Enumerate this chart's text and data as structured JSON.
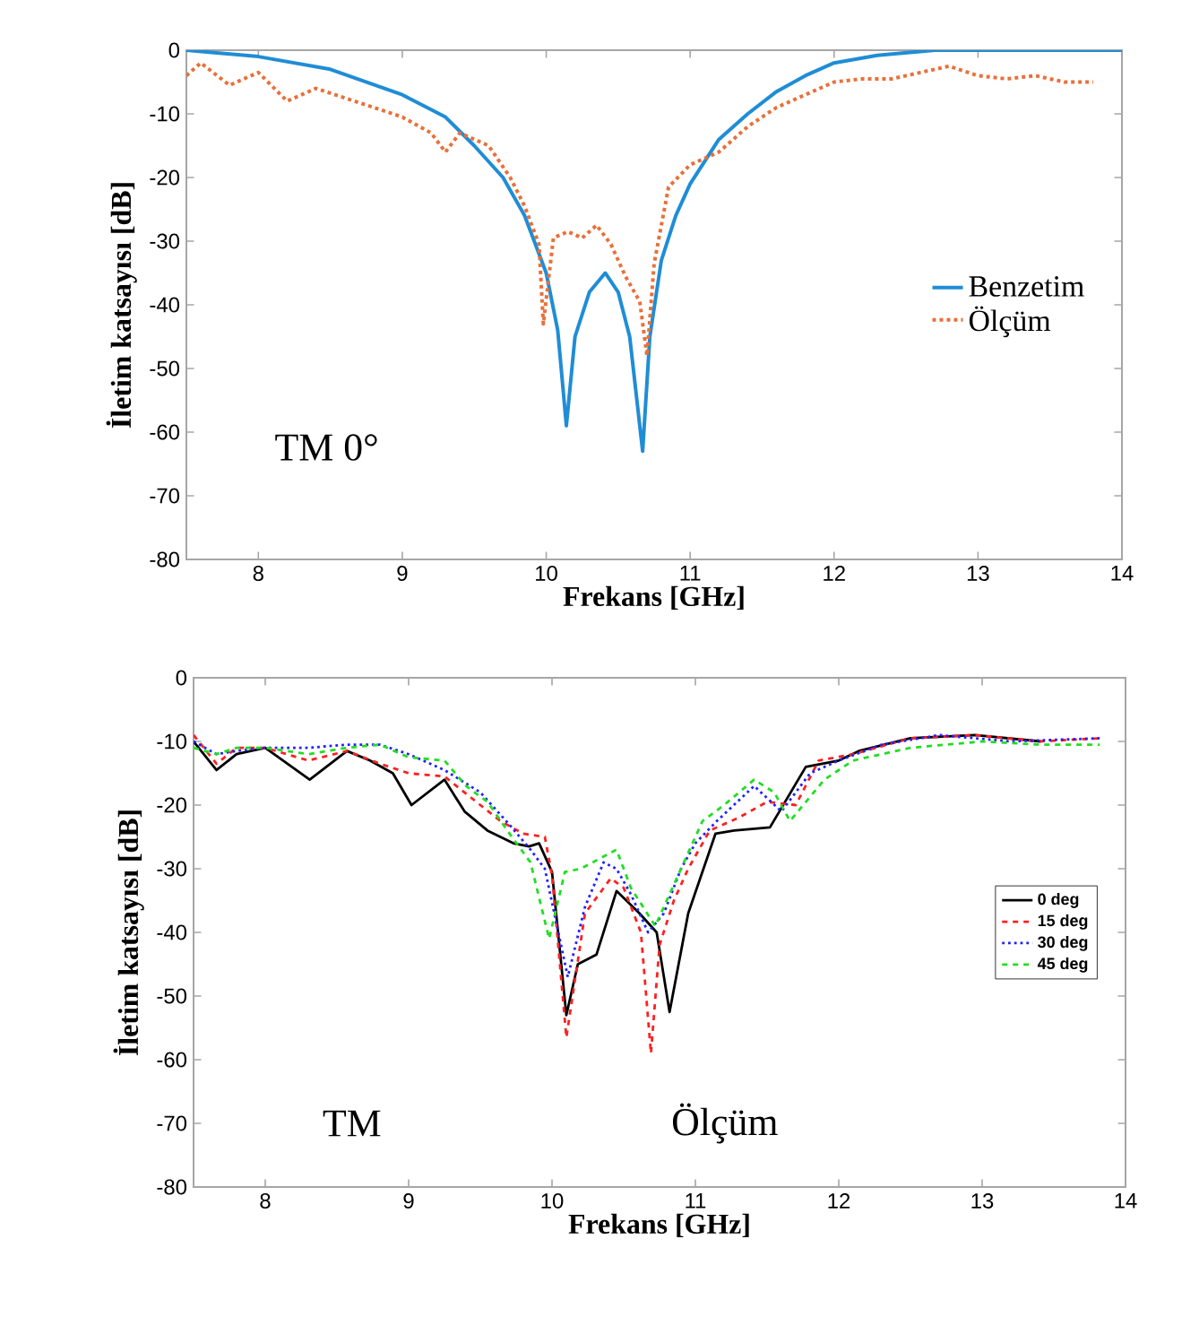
{
  "chart_data": [
    {
      "type": "line",
      "xlabel": "Frekans [GHz]",
      "ylabel": "İletim katsayısı [dB]",
      "xlim": [
        7.5,
        14
      ],
      "ylim": [
        -80,
        0
      ],
      "xticks": [
        8,
        9,
        10,
        11,
        12,
        13,
        14
      ],
      "yticks": [
        -80,
        -70,
        -60,
        -50,
        -40,
        -30,
        -20,
        -10,
        0
      ],
      "legend": "right",
      "annotations": [
        "TM 0°"
      ],
      "series": [
        {
          "name": "Benzetim",
          "color": "#1f8dd6",
          "line_style": "solid",
          "x": [
            7.5,
            8,
            8.5,
            9,
            9.3,
            9.5,
            9.7,
            9.85,
            10.0,
            10.08,
            10.14,
            10.2,
            10.3,
            10.41,
            10.5,
            10.58,
            10.67,
            10.72,
            10.8,
            10.9,
            11.0,
            11.2,
            11.4,
            11.6,
            11.8,
            12.0,
            12.3,
            12.7,
            14
          ],
          "values": [
            0,
            -1,
            -3,
            -7,
            -10.5,
            -15,
            -20,
            -26,
            -35,
            -44,
            -59,
            -45,
            -38,
            -35,
            -38,
            -45,
            -63,
            -45,
            -33,
            -26,
            -21,
            -14,
            -10,
            -6.5,
            -4,
            -2,
            -0.8,
            0,
            0
          ]
        },
        {
          "name": "Ölçüm",
          "color": "#e8703a",
          "line_style": "dotted",
          "x": [
            7.5,
            7.6,
            7.8,
            8.0,
            8.2,
            8.4,
            8.6,
            8.8,
            9.0,
            9.2,
            9.3,
            9.4,
            9.6,
            9.75,
            9.85,
            9.95,
            9.98,
            10.05,
            10.15,
            10.25,
            10.35,
            10.45,
            10.55,
            10.65,
            10.7,
            10.75,
            10.85,
            11.0,
            11.2,
            11.4,
            11.6,
            11.8,
            12.0,
            12.2,
            12.4,
            12.6,
            12.8,
            13.0,
            13.2,
            13.4,
            13.6,
            13.8
          ],
          "values": [
            -4,
            -2,
            -5.5,
            -3.5,
            -8,
            -6,
            -7.5,
            -9,
            -10.5,
            -13,
            -16,
            -13,
            -15,
            -20,
            -24.5,
            -30.5,
            -43,
            -29.5,
            -28.5,
            -29.5,
            -27.5,
            -30.5,
            -35.5,
            -39.5,
            -48,
            -33.5,
            -21.5,
            -18,
            -16,
            -12,
            -9,
            -7,
            -5,
            -4.5,
            -4.5,
            -3.5,
            -2.5,
            -4,
            -4.5,
            -4,
            -5,
            -5
          ]
        }
      ]
    },
    {
      "type": "line",
      "xlabel": "Frekans [GHz]",
      "ylabel": "İletim katsayısı [dB]",
      "xlim": [
        7.5,
        14
      ],
      "ylim": [
        -80,
        0
      ],
      "xticks": [
        8,
        9,
        10,
        11,
        12,
        13,
        14
      ],
      "yticks": [
        -80,
        -70,
        -60,
        -50,
        -40,
        -30,
        -20,
        -10,
        0
      ],
      "legend": "right",
      "annotations": [
        "TM",
        "Ölçüm"
      ],
      "series": [
        {
          "name": "0 deg",
          "color": "#000000",
          "line_style": "solid",
          "x": [
            7.5,
            7.66,
            7.8,
            8.0,
            8.31,
            8.57,
            8.73,
            8.89,
            9.02,
            9.25,
            9.39,
            9.55,
            9.73,
            9.84,
            9.91,
            10.0,
            10.1,
            10.18,
            10.31,
            10.45,
            10.61,
            10.73,
            10.82,
            10.95,
            11.14,
            11.27,
            11.52,
            11.77,
            12.0,
            12.14,
            12.5,
            12.95,
            13.41
          ],
          "values": [
            -10,
            -14.5,
            -12,
            -11,
            -16,
            -11.5,
            -13,
            -15,
            -20,
            -16,
            -21,
            -24,
            -26,
            -26.5,
            -26,
            -30.5,
            -53,
            -45,
            -43.5,
            -33.5,
            -37,
            -40,
            -52.5,
            -37,
            -24.5,
            -24,
            -23.5,
            -14,
            -13,
            -11.5,
            -9.5,
            -9,
            -10
          ]
        },
        {
          "name": "15 deg",
          "color": "#ff2020",
          "line_style": "dashed",
          "x": [
            7.5,
            7.66,
            7.8,
            8.0,
            8.3,
            8.57,
            8.8,
            9.0,
            9.25,
            9.64,
            9.8,
            9.95,
            10.0,
            10.1,
            10.23,
            10.41,
            10.5,
            10.62,
            10.69,
            10.75,
            10.85,
            10.95,
            11.1,
            11.3,
            11.5,
            11.7,
            11.86,
            12.1,
            12.5,
            12.95,
            13.4,
            13.82
          ],
          "values": [
            -9,
            -13.5,
            -11,
            -11,
            -13,
            -11.5,
            -13.5,
            -15,
            -15.5,
            -22.5,
            -24.5,
            -25,
            -31,
            -56.5,
            -37,
            -31.5,
            -33,
            -40,
            -59,
            -42,
            -35,
            -30,
            -24,
            -22,
            -19.5,
            -20,
            -13,
            -12,
            -9.5,
            -9,
            -10,
            -9.5
          ]
        },
        {
          "name": "30 deg",
          "color": "#2020ff",
          "line_style": "dotted",
          "x": [
            7.5,
            7.66,
            7.8,
            8.0,
            8.3,
            8.57,
            8.8,
            9.0,
            9.25,
            9.5,
            9.7,
            9.85,
            9.95,
            10.11,
            10.23,
            10.36,
            10.45,
            10.55,
            10.67,
            10.78,
            10.9,
            11.0,
            11.15,
            11.41,
            11.6,
            11.8,
            12.0,
            12.3,
            12.7,
            13.2,
            13.82
          ],
          "values": [
            -10,
            -12,
            -11.5,
            -11,
            -11,
            -10.5,
            -10.5,
            -12,
            -14.5,
            -18,
            -23,
            -27,
            -30,
            -47,
            -36,
            -29,
            -30,
            -34,
            -40,
            -37,
            -30,
            -26,
            -22.5,
            -17,
            -21,
            -15,
            -13,
            -10.5,
            -9,
            -10,
            -9.5
          ]
        },
        {
          "name": "45 deg",
          "color": "#22dd22",
          "line_style": "dashed",
          "x": [
            7.5,
            7.66,
            7.8,
            8.0,
            8.3,
            8.57,
            8.8,
            9.0,
            9.25,
            9.4,
            9.55,
            9.72,
            9.85,
            9.98,
            10.09,
            10.2,
            10.45,
            10.55,
            10.72,
            10.8,
            11.05,
            11.2,
            11.41,
            11.55,
            11.66,
            11.9,
            12.1,
            12.5,
            13.0,
            13.4,
            13.82
          ],
          "values": [
            -11,
            -12,
            -11,
            -11,
            -12,
            -11,
            -10.5,
            -12.5,
            -13,
            -17,
            -19.5,
            -25,
            -29,
            -41,
            -30.5,
            -30,
            -27,
            -33,
            -39,
            -35,
            -22.5,
            -20,
            -16,
            -18,
            -22.5,
            -16,
            -13,
            -11,
            -10,
            -10.5,
            -10.5
          ]
        }
      ]
    }
  ]
}
